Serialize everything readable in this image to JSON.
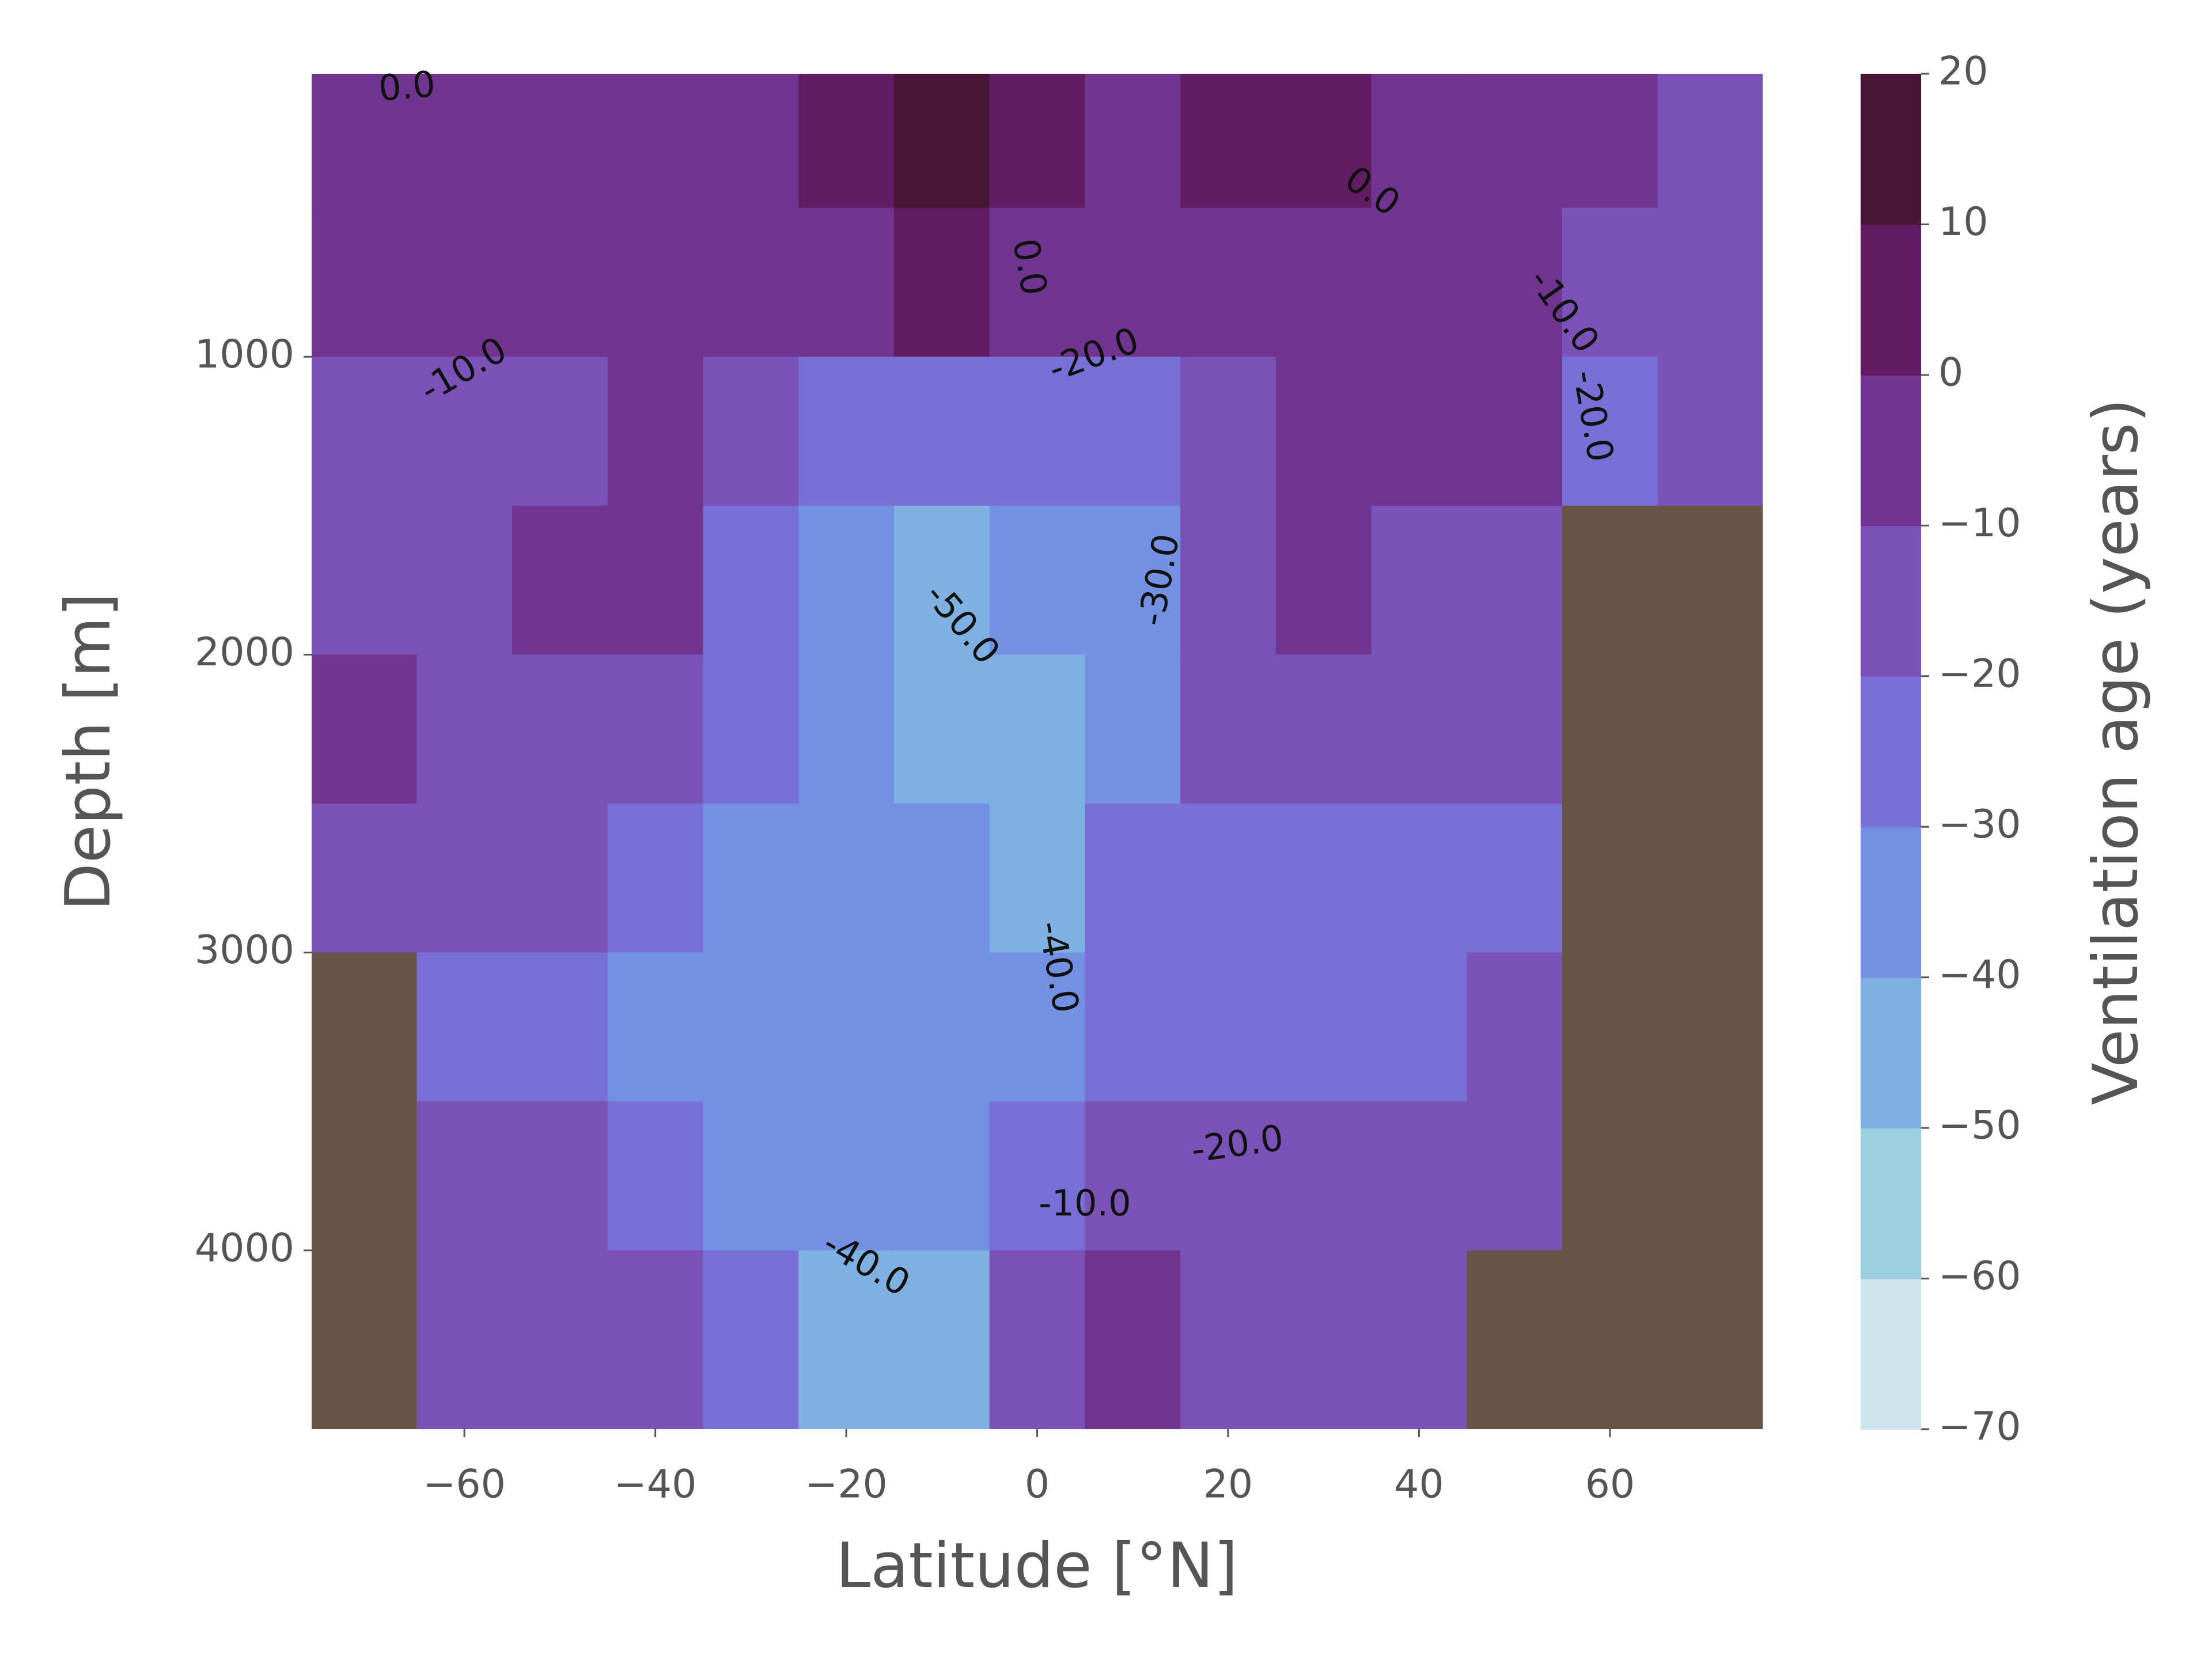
{
  "chart_data": {
    "type": "contour",
    "xlabel": "Latitude [°N]",
    "ylabel": "Depth [m]",
    "colorbar_label": "Ventilation age (years)",
    "xlim": [
      -76,
      76
    ],
    "ylim": [
      4600,
      50
    ],
    "xticks": [
      {
        "value": -60,
        "label": "−60"
      },
      {
        "value": -40,
        "label": "−40"
      },
      {
        "value": -20,
        "label": "−20"
      },
      0,
      20,
      40,
      60
    ],
    "yticks": [
      1000,
      2000,
      3000,
      4000
    ],
    "x": [
      -70,
      -60,
      -50,
      -40,
      -30,
      -20,
      -10,
      0,
      10,
      20,
      30,
      40,
      50,
      60,
      70
    ],
    "y": [
      250,
      750,
      1250,
      1750,
      2250,
      2750,
      3250,
      3750,
      4250
    ],
    "z": [
      [
        -5,
        -8,
        -12,
        -12,
        -8,
        -15,
        null,
        null,
        null
      ],
      [
        -5,
        -8,
        -15,
        -15,
        -15,
        -15,
        -22,
        -18,
        -15
      ],
      [
        -5,
        -8,
        -12,
        -8,
        -12,
        -18,
        -22,
        -18,
        -18
      ],
      [
        -5,
        -5,
        -8,
        -8,
        -15,
        -25,
        -32,
        -25,
        -18
      ],
      [
        -5,
        -5,
        -15,
        -22,
        -28,
        -32,
        -35,
        -35,
        -25
      ],
      [
        2,
        -5,
        -25,
        -35,
        -38,
        -38,
        -35,
        -35,
        -45
      ],
      [
        12,
        2,
        -28,
        -45,
        -45,
        -40,
        -35,
        -32,
        -50
      ],
      [
        2,
        -5,
        -25,
        -40,
        -42,
        -42,
        -40,
        -25,
        -15
      ],
      [
        -5,
        -8,
        -22,
        -32,
        -35,
        -30,
        -25,
        -15,
        -5
      ],
      [
        2,
        -5,
        -15,
        -15,
        -18,
        -22,
        -22,
        -18,
        -15
      ],
      [
        5,
        -5,
        -8,
        -8,
        -15,
        -22,
        -22,
        -18,
        -15
      ],
      [
        -5,
        -8,
        -8,
        -12,
        -15,
        -22,
        -22,
        -18,
        -15
      ],
      [
        -5,
        -8,
        -8,
        -12,
        -15,
        -22,
        -15,
        -15,
        null
      ],
      [
        -8,
        -12,
        -25,
        null,
        null,
        null,
        null,
        null,
        null
      ],
      [
        -15,
        -15,
        -15,
        null,
        null,
        null,
        null,
        null,
        null
      ]
    ],
    "levels": [
      -70,
      -60,
      -50,
      -40,
      -30,
      -20,
      -10,
      0,
      10,
      20
    ],
    "level_colors": [
      "#cde5ea",
      "#9ccfe0",
      "#7eb1e2",
      "#7390e3",
      "#7870d6",
      "#7a52b8",
      "#6f3590",
      "#611c63",
      "#461634"
    ],
    "land_color": "#675446",
    "cbar_ticks": [
      20,
      10,
      0,
      {
        "value": -10,
        "label": "−10"
      },
      {
        "value": -20,
        "label": "−20"
      },
      {
        "value": -30,
        "label": "−30"
      },
      {
        "value": -40,
        "label": "−40"
      },
      {
        "value": -50,
        "label": "−50"
      },
      {
        "value": -60,
        "label": "−60"
      },
      {
        "value": -70,
        "label": "−70"
      }
    ],
    "contour_labels": [
      {
        "value": 0,
        "label": "0.0"
      },
      {
        "value": 0,
        "label": "0.0"
      },
      {
        "value": 0,
        "label": "0.0"
      },
      {
        "value": -10,
        "label": "-10.0"
      },
      {
        "value": -10,
        "label": "-10.0"
      },
      {
        "value": -10,
        "label": "-10.0"
      },
      {
        "value": -20,
        "label": "-20.0"
      },
      {
        "value": -20,
        "label": "-20.0"
      },
      {
        "value": -20,
        "label": "-20.0"
      },
      {
        "value": -30,
        "label": "-30.0"
      },
      {
        "value": -40,
        "label": "-40.0"
      },
      {
        "value": -40,
        "label": "-40.0"
      },
      {
        "value": -50,
        "label": "-50.0"
      }
    ]
  }
}
